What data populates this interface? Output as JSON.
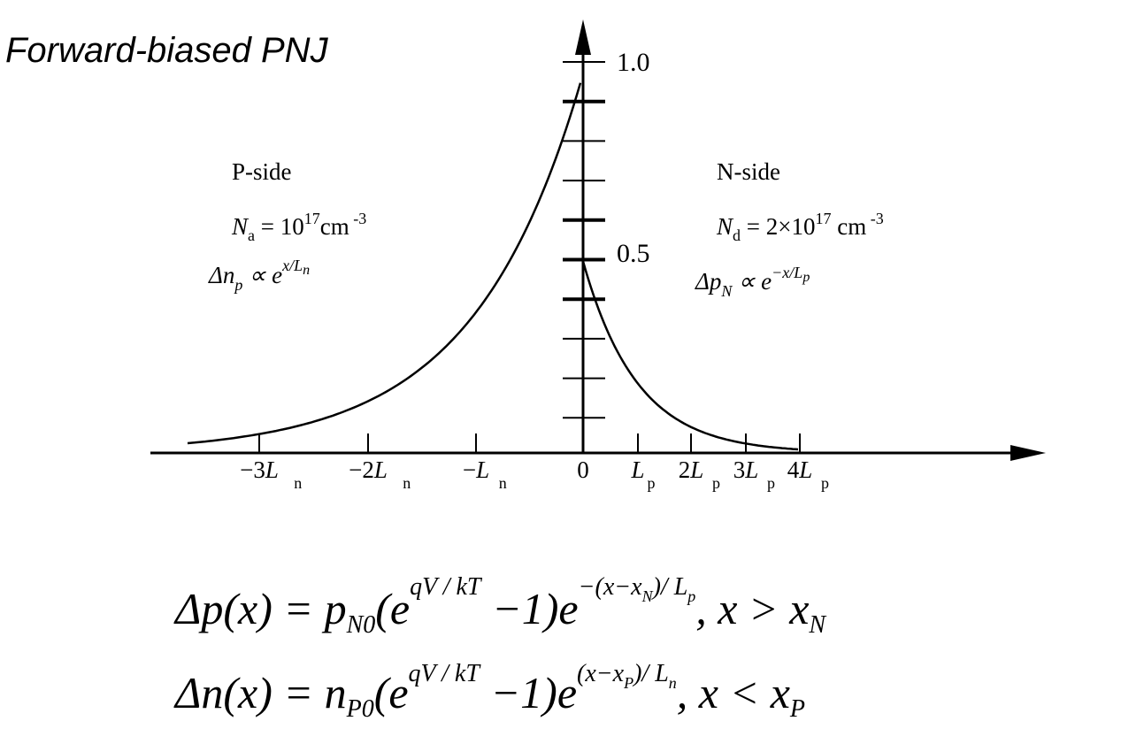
{
  "title": "Forward-biased PNJ",
  "y_tick_labels": [
    "1.0",
    "0.5"
  ],
  "x_tick_labels": [
    [
      "−3",
      "L",
      "n"
    ],
    [
      "−2",
      "L",
      "n"
    ],
    [
      "−",
      "L",
      "n"
    ],
    [
      "0"
    ],
    [
      "",
      "L",
      "p"
    ],
    [
      "2",
      "L",
      "p"
    ],
    [
      "3",
      "L",
      "p"
    ],
    [
      "4",
      "L",
      "p"
    ]
  ],
  "p_side": {
    "label": "P-side",
    "doping": [
      "N",
      "a",
      " = 10",
      "17",
      "cm",
      " -3"
    ],
    "profile": [
      "Δn",
      "p",
      " ∝ e",
      "x/L",
      "n"
    ]
  },
  "n_side": {
    "label": "N-side",
    "doping": [
      "N",
      "d",
      " = 2×10",
      "17",
      " cm",
      " -3"
    ],
    "profile": [
      "Δp",
      "N",
      "  ∝ e",
      "−x/L",
      "p"
    ]
  },
  "equations": [
    [
      "Δp(x) = p",
      "N0",
      "(e",
      "qV / kT",
      " −1)e",
      "−(x−x",
      "N",
      ")/ L",
      "p",
      ",  x > x",
      "N"
    ],
    [
      "Δn(x) = n",
      "P0",
      "(e",
      "qV  / kT",
      "  −1)e",
      "(x−x",
      "P",
      ")/ L",
      "n",
      ",  x < x",
      "P"
    ]
  ]
}
